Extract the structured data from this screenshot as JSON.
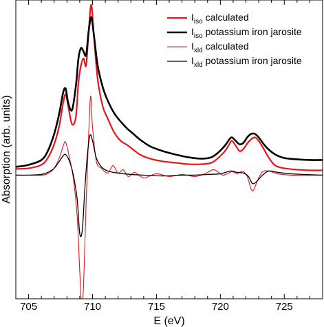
{
  "chart_data": {
    "type": "line",
    "title": "",
    "xlabel": "E (eV)",
    "ylabel": "Absorption (arb. units)",
    "xlim": [
      704,
      728
    ],
    "ylim": [
      -1.8,
      2.55
    ],
    "xticks": [
      705,
      710,
      715,
      720,
      725
    ],
    "yticks_shown": false,
    "grid": false,
    "legend_position": "top-right",
    "series": [
      {
        "name_main": "I",
        "name_sub": "iso",
        "name_rest": " calculated",
        "color": "#e8141c",
        "line_width": 2.2,
        "x": [
          704,
          705,
          706,
          706.5,
          707,
          707.4,
          707.7,
          707.9,
          708.1,
          708.4,
          708.7,
          708.9,
          709.1,
          709.3,
          709.5,
          709.7,
          709.9,
          710.1,
          710.4,
          710.8,
          711.2,
          711.7,
          712.2,
          712.7,
          713.2,
          713.7,
          714.5,
          715.5,
          716.5,
          717.5,
          718.5,
          719.3,
          719.9,
          720.4,
          720.7,
          720.9,
          721.2,
          721.5,
          721.8,
          722.1,
          722.4,
          722.7,
          723.0,
          723.4,
          723.8,
          724.3,
          725,
          726,
          727,
          728
        ],
        "y": [
          0.09,
          0.1,
          0.15,
          0.25,
          0.45,
          0.72,
          1.05,
          1.18,
          1.0,
          0.74,
          0.85,
          1.35,
          1.6,
          1.7,
          1.6,
          2.1,
          2.48,
          2.05,
          1.4,
          1.0,
          0.82,
          0.62,
          0.5,
          0.44,
          0.37,
          0.3,
          0.24,
          0.2,
          0.18,
          0.16,
          0.16,
          0.18,
          0.26,
          0.36,
          0.45,
          0.5,
          0.43,
          0.35,
          0.38,
          0.46,
          0.52,
          0.55,
          0.5,
          0.38,
          0.25,
          0.14,
          0.1,
          0.08,
          0.07,
          0.07
        ]
      },
      {
        "name_main": "I",
        "name_sub": "iso",
        "name_rest": " potassium iron jarosite",
        "color": "#000000",
        "line_width": 2.6,
        "x": [
          704,
          705,
          706,
          706.5,
          707,
          707.4,
          707.7,
          707.9,
          708.1,
          708.4,
          708.7,
          708.9,
          709.1,
          709.3,
          709.5,
          709.7,
          709.9,
          710.1,
          710.4,
          710.8,
          711.2,
          711.7,
          712.2,
          712.7,
          713.2,
          713.7,
          714.5,
          715.5,
          716.5,
          717.5,
          718.5,
          719.3,
          719.9,
          720.4,
          720.7,
          720.9,
          721.2,
          721.5,
          721.8,
          722.1,
          722.4,
          722.7,
          723.0,
          723.4,
          723.8,
          724.3,
          725,
          726,
          727,
          728
        ],
        "y": [
          0.12,
          0.15,
          0.22,
          0.35,
          0.6,
          0.9,
          1.2,
          1.26,
          1.05,
          0.95,
          1.3,
          1.7,
          1.85,
          1.8,
          1.75,
          2.1,
          2.3,
          2.05,
          1.6,
          1.28,
          1.08,
          0.9,
          0.78,
          0.68,
          0.6,
          0.52,
          0.42,
          0.35,
          0.3,
          0.26,
          0.24,
          0.26,
          0.34,
          0.44,
          0.52,
          0.55,
          0.5,
          0.45,
          0.47,
          0.55,
          0.6,
          0.6,
          0.55,
          0.45,
          0.37,
          0.3,
          0.25,
          0.23,
          0.22,
          0.22
        ]
      },
      {
        "name_main": "I",
        "name_sub": "xld",
        "name_rest": " calculated",
        "color": "#e8141c",
        "line_width": 1.1,
        "x": [
          704,
          705,
          706,
          706.5,
          707,
          707.4,
          707.7,
          707.9,
          708.2,
          708.5,
          708.8,
          709.0,
          709.15,
          709.3,
          709.5,
          709.7,
          709.85,
          710.0,
          710.3,
          710.7,
          711.2,
          711.6,
          712.0,
          712.4,
          712.8,
          713.3,
          714,
          715,
          716,
          717,
          718,
          718.8,
          719.5,
          720.2,
          720.9,
          721.3,
          721.7,
          722.1,
          722.4,
          722.6,
          722.9,
          723.3,
          723.8,
          724.5,
          725.5,
          726.5,
          728
        ],
        "y": [
          0.0,
          0.0,
          0.0,
          0.02,
          0.1,
          0.25,
          0.42,
          0.48,
          0.25,
          -0.05,
          -0.6,
          -1.4,
          -1.9,
          -1.6,
          -0.4,
          0.6,
          1.15,
          0.7,
          0.2,
          0.1,
          0.03,
          0.14,
          0.03,
          0.08,
          -0.02,
          0.04,
          -0.04,
          0.02,
          -0.02,
          0.01,
          -0.02,
          0.02,
          0.08,
          0.0,
          0.05,
          0.02,
          0.06,
          -0.02,
          -0.2,
          -0.22,
          -0.08,
          0.05,
          0.06,
          0.02,
          0.0,
          0.0,
          0.0
        ]
      },
      {
        "name_main": "I",
        "name_sub": "xld",
        "name_rest": " potassium iron jarosite",
        "color": "#000000",
        "line_width": 1.3,
        "x": [
          704,
          705,
          706,
          706.5,
          707,
          707.4,
          707.7,
          707.9,
          708.2,
          708.5,
          708.8,
          709.0,
          709.2,
          709.4,
          709.6,
          709.8,
          710.0,
          710.3,
          710.7,
          711.2,
          712,
          713,
          714,
          715,
          716,
          717,
          718,
          719,
          720,
          720.8,
          721.3,
          721.8,
          722.2,
          722.5,
          722.8,
          723.3,
          723.8,
          724.5,
          725.5,
          726.5,
          728
        ],
        "y": [
          0.0,
          0.0,
          0.01,
          0.04,
          0.1,
          0.2,
          0.28,
          0.3,
          0.2,
          0.0,
          -0.35,
          -0.85,
          -0.8,
          -0.2,
          0.3,
          0.58,
          0.5,
          0.25,
          0.12,
          0.06,
          0.03,
          0.01,
          0.0,
          -0.01,
          -0.01,
          0.0,
          0.0,
          0.01,
          0.02,
          0.06,
          0.04,
          0.03,
          -0.02,
          -0.12,
          -0.1,
          0.0,
          0.06,
          0.04,
          0.02,
          0.01,
          0.0
        ]
      }
    ]
  }
}
